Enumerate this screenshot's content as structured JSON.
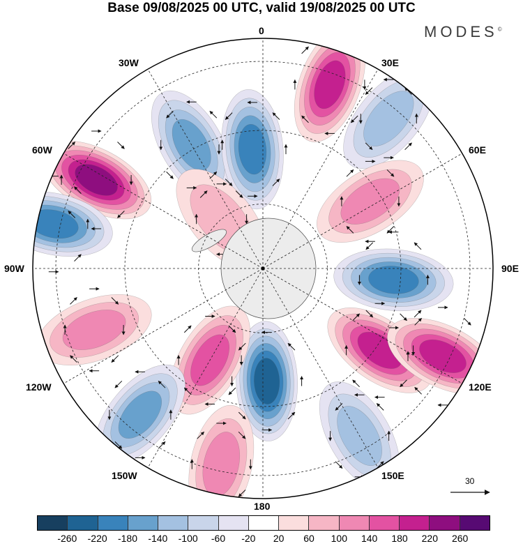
{
  "title": "Base 09/08/2025 00 UTC, valid 19/08/2025 00 UTC",
  "brand": "MODES",
  "brand_mark": "©",
  "map": {
    "projection": "south-polar-stereographic",
    "longitude_labels": {
      "north": "0",
      "n_e": "30E",
      "e_n": "60E",
      "east": "90E",
      "e_s": "120E",
      "s_e": "150E",
      "south": "180",
      "s_w": "150W",
      "w_s": "120W",
      "west": "90W",
      "w_n": "60W",
      "n_w": "30W"
    }
  },
  "vector_key": {
    "label": "30",
    "icon": "arrow-right-icon"
  },
  "colorbar": {
    "colors": [
      "#173f5f",
      "#1f6393",
      "#3983bb",
      "#68a1cd",
      "#a4c1e1",
      "#c9d5ea",
      "#e5e3f2",
      "#ffffff",
      "#fbdede",
      "#f6b6c5",
      "#ef88b3",
      "#e352a2",
      "#c4208f",
      "#8e0e7f",
      "#570a73"
    ],
    "tick_labels": [
      "-260",
      "-220",
      "-180",
      "-140",
      "-100",
      "-60",
      "-20",
      "20",
      "60",
      "100",
      "140",
      "180",
      "220",
      "260"
    ]
  },
  "anomalies": [
    {
      "name": "neg-30w",
      "value": -140,
      "lon": -30,
      "rho": 0.62
    },
    {
      "name": "neg-5w",
      "value": -180,
      "lon": -5,
      "rho": 0.52
    },
    {
      "name": "pos-20e",
      "value": 200,
      "lon": 20,
      "rho": 0.85
    },
    {
      "name": "neg-40e",
      "value": -100,
      "lon": 40,
      "rho": 0.85
    },
    {
      "name": "pos-60w",
      "value": 230,
      "lon": -62,
      "rho": 0.82
    },
    {
      "name": "neg-78w",
      "value": -190,
      "lon": -78,
      "rho": 0.93
    },
    {
      "name": "pos-58e",
      "value": 110,
      "lon": 58,
      "rho": 0.55
    },
    {
      "name": "neg-95e",
      "value": -190,
      "lon": 95,
      "rho": 0.57
    },
    {
      "name": "pos-125e",
      "value": 180,
      "lon": 125,
      "rho": 0.62
    },
    {
      "name": "pos-115e",
      "value": 200,
      "lon": 116,
      "rho": 0.87
    },
    {
      "name": "neg-178e",
      "value": -220,
      "lon": 178,
      "rho": 0.49
    },
    {
      "name": "pos-150w",
      "value": 150,
      "lon": -150,
      "rho": 0.46
    },
    {
      "name": "pos-110w",
      "value": 120,
      "lon": -110,
      "rho": 0.78
    },
    {
      "name": "neg-140w",
      "value": -140,
      "lon": -140,
      "rho": 0.83
    },
    {
      "name": "neg-150e",
      "value": -120,
      "lon": 150,
      "rho": 0.84
    },
    {
      "name": "pos-168w",
      "value": 120,
      "lon": -168,
      "rho": 0.87
    },
    {
      "name": "pos-60w-inner",
      "value": 60,
      "lon": -40,
      "rho": 0.28
    }
  ]
}
